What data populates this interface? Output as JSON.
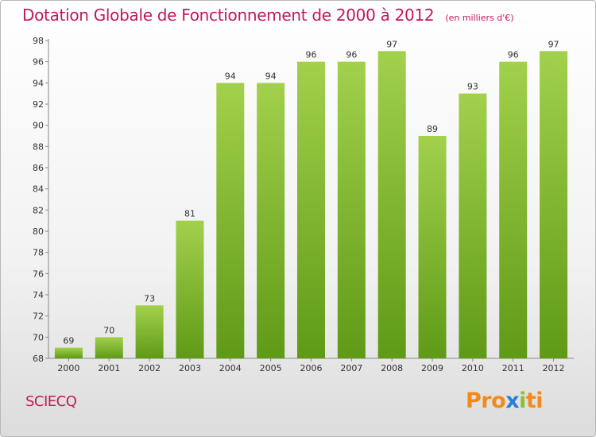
{
  "header": {
    "title": "Dotation Globale de Fonctionnement de 2000 à 2012",
    "unit": "(en milliers d'€)"
  },
  "footer": {
    "commune": "SCIECQ",
    "brand": "Proxiti"
  },
  "colors": {
    "title": "#c2185b",
    "bar_light": "#a2d14c",
    "bar_dark": "#5f9a16",
    "logo": [
      "#f08a1d",
      "#f08a1d",
      "#f08a1d",
      "#2a7fd4",
      "#88c030",
      "#f08a1d",
      "#f08a1d"
    ]
  },
  "chart_data": {
    "type": "bar",
    "title": "Dotation Globale de Fonctionnement de 2000 à 2012",
    "ylabel": "(en milliers d'€)",
    "categories": [
      "2000",
      "2001",
      "2002",
      "2003",
      "2004",
      "2005",
      "2006",
      "2007",
      "2008",
      "2009",
      "2010",
      "2011",
      "2012"
    ],
    "values": [
      69,
      70,
      73,
      81,
      94,
      94,
      96,
      96,
      97,
      89,
      93,
      96,
      97
    ],
    "ylim": [
      68,
      98
    ],
    "yticks": [
      68,
      70,
      72,
      74,
      76,
      78,
      80,
      82,
      84,
      86,
      88,
      90,
      92,
      94,
      96,
      98
    ],
    "grid": false,
    "data_labels": true
  }
}
